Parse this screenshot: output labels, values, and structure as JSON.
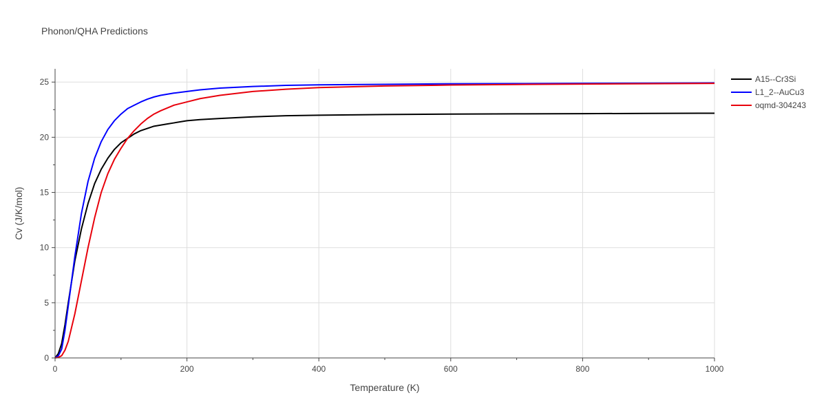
{
  "chart_data": {
    "type": "line",
    "title": "Phonon/QHA Predictions",
    "xlabel": "Temperature (K)",
    "ylabel": "Cv (J/K/mol)",
    "xlim": [
      0,
      1000
    ],
    "ylim": [
      0,
      26.2
    ],
    "xticks": [
      0,
      200,
      400,
      600,
      800,
      1000
    ],
    "xtick_labels": [
      "0",
      "200",
      "400",
      "600",
      "800",
      "1000"
    ],
    "yticks": [
      0,
      5,
      10,
      15,
      20,
      25
    ],
    "ytick_labels": [
      "0",
      "5",
      "10",
      "15",
      "20",
      "25"
    ],
    "grid": true,
    "legend_position": "top-right",
    "series": [
      {
        "name": "A15--Cr3Si",
        "color": "#000000",
        "x": [
          0,
          5,
          10,
          15,
          20,
          30,
          40,
          50,
          60,
          70,
          80,
          90,
          100,
          110,
          120,
          130,
          140,
          150,
          160,
          170,
          180,
          200,
          220,
          250,
          300,
          350,
          400,
          450,
          500,
          600,
          700,
          800,
          900,
          1000
        ],
        "y": [
          0,
          0.4,
          1.3,
          3.0,
          5.0,
          8.8,
          11.7,
          14.0,
          15.8,
          17.1,
          18.1,
          18.9,
          19.5,
          19.9,
          20.3,
          20.6,
          20.8,
          21.0,
          21.1,
          21.2,
          21.3,
          21.5,
          21.6,
          21.7,
          21.85,
          21.95,
          22.0,
          22.03,
          22.06,
          22.1,
          22.12,
          22.14,
          22.16,
          22.18
        ]
      },
      {
        "name": "L1_2--AuCu3",
        "color": "#0000ff",
        "x": [
          0,
          5,
          10,
          15,
          20,
          30,
          40,
          50,
          60,
          70,
          80,
          90,
          100,
          110,
          120,
          130,
          140,
          150,
          160,
          170,
          180,
          200,
          220,
          250,
          300,
          350,
          400,
          500,
          600,
          700,
          800,
          900,
          1000
        ],
        "y": [
          0,
          0.2,
          0.8,
          2.5,
          4.7,
          9.2,
          13.1,
          16.0,
          18.1,
          19.6,
          20.7,
          21.5,
          22.1,
          22.6,
          22.9,
          23.2,
          23.45,
          23.65,
          23.8,
          23.9,
          24.0,
          24.15,
          24.3,
          24.45,
          24.6,
          24.7,
          24.75,
          24.8,
          24.84,
          24.86,
          24.88,
          24.9,
          24.92
        ]
      },
      {
        "name": "oqmd-304243",
        "color": "#e8000b",
        "x": [
          0,
          5,
          10,
          15,
          20,
          30,
          40,
          50,
          60,
          70,
          80,
          90,
          100,
          110,
          120,
          130,
          140,
          150,
          160,
          170,
          180,
          200,
          220,
          250,
          300,
          350,
          400,
          500,
          600,
          700,
          800,
          900,
          1000
        ],
        "y": [
          0,
          0.05,
          0.2,
          0.7,
          1.5,
          4.0,
          7.0,
          10.0,
          12.7,
          15.0,
          16.7,
          18.0,
          19.0,
          19.9,
          20.6,
          21.2,
          21.7,
          22.1,
          22.4,
          22.65,
          22.9,
          23.2,
          23.5,
          23.8,
          24.15,
          24.35,
          24.5,
          24.65,
          24.73,
          24.78,
          24.82,
          24.85,
          24.88
        ]
      }
    ]
  }
}
